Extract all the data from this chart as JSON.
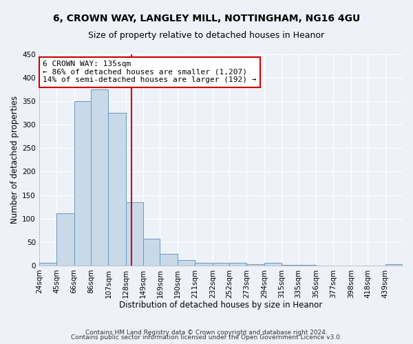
{
  "title": "6, CROWN WAY, LANGLEY MILL, NOTTINGHAM, NG16 4GU",
  "subtitle": "Size of property relative to detached houses in Heanor",
  "xlabel": "Distribution of detached houses by size in Heanor",
  "ylabel": "Number of detached properties",
  "bar_color": "#c8daea",
  "bar_edge_color": "#6699bb",
  "categories": [
    "24sqm",
    "45sqm",
    "66sqm",
    "86sqm",
    "107sqm",
    "128sqm",
    "149sqm",
    "169sqm",
    "190sqm",
    "211sqm",
    "232sqm",
    "252sqm",
    "273sqm",
    "294sqm",
    "315sqm",
    "335sqm",
    "356sqm",
    "377sqm",
    "398sqm",
    "418sqm",
    "439sqm"
  ],
  "values": [
    5,
    111,
    350,
    375,
    325,
    135,
    57,
    25,
    12,
    5,
    5,
    5,
    2,
    5,
    1,
    1,
    0,
    0,
    0,
    0,
    2
  ],
  "ylim": [
    0,
    450
  ],
  "yticks": [
    0,
    50,
    100,
    150,
    200,
    250,
    300,
    350,
    400,
    450
  ],
  "property_line_x": 135,
  "bin_edges": [
    24,
    45,
    66,
    86,
    107,
    128,
    149,
    169,
    190,
    211,
    232,
    252,
    273,
    294,
    315,
    335,
    356,
    377,
    398,
    418,
    439,
    460
  ],
  "annotation_title": "6 CROWN WAY: 135sqm",
  "annotation_line1": "← 86% of detached houses are smaller (1,207)",
  "annotation_line2": "14% of semi-detached houses are larger (192) →",
  "vline_color": "#cc0000",
  "annotation_box_color": "#ffffff",
  "annotation_box_edge": "#cc0000",
  "footer1": "Contains HM Land Registry data © Crown copyright and database right 2024.",
  "footer2": "Contains public sector information licensed under the Open Government Licence v3.0.",
  "background_color": "#eef2f8",
  "grid_color": "#ffffff",
  "title_fontsize": 10,
  "subtitle_fontsize": 9,
  "axis_label_fontsize": 8.5,
  "tick_fontsize": 7.5,
  "annotation_fontsize": 8,
  "footer_fontsize": 6.5
}
